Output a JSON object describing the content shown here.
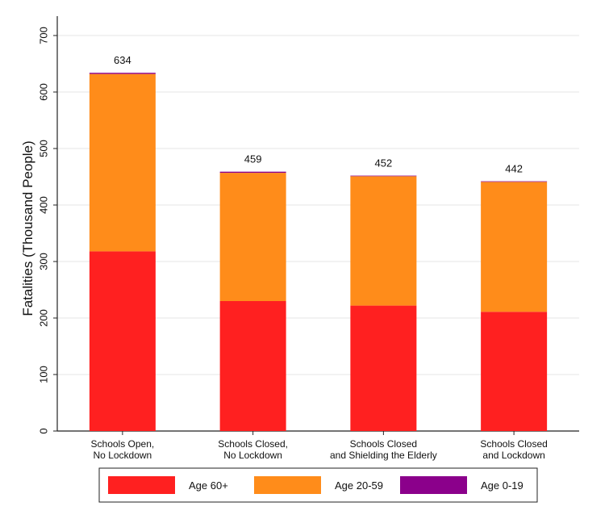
{
  "chart_data": {
    "type": "bar",
    "stacked": true,
    "ylabel": "Fatalities (Thousand People)",
    "xlabel": "",
    "ylim": [
      0,
      700
    ],
    "yticks": [
      0,
      100,
      200,
      300,
      400,
      500,
      600,
      700
    ],
    "grid": true,
    "legend_position": "bottom",
    "categories": [
      [
        "Schools Open,",
        "No Lockdown"
      ],
      [
        "Schools Closed,",
        "No Lockdown"
      ],
      [
        "Schools Closed",
        "and Shielding the Elderly"
      ],
      [
        "Schools Closed",
        "and Lockdown"
      ]
    ],
    "totals": [
      634,
      459,
      452,
      442
    ],
    "series": [
      {
        "name": "Age 60+",
        "color": "#ff2020",
        "values": [
          318,
          230,
          222,
          211
        ]
      },
      {
        "name": "Age 20-59",
        "color": "#ff8c1a",
        "values": [
          314,
          227,
          229,
          230
        ]
      },
      {
        "name": "Age 0-19",
        "color": "#8b008b",
        "values": [
          2,
          2,
          1,
          1
        ]
      }
    ]
  }
}
